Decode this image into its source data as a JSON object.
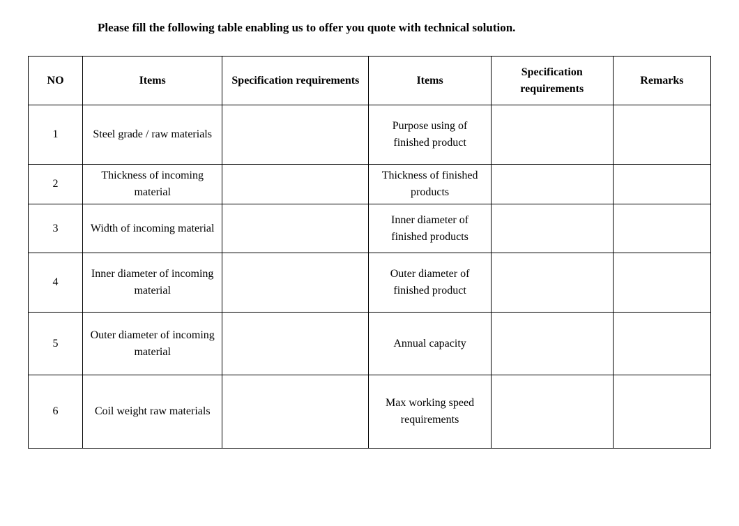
{
  "title": "Please fill the following table enabling us to offer you quote with technical solution.",
  "table": {
    "columns": [
      "NO",
      "Items",
      "Specification requirements",
      "Items",
      "Specification requirements",
      "Remarks"
    ],
    "rows": [
      {
        "no": "1",
        "items1": "Steel grade / raw materials",
        "spec1": "",
        "items2": "Purpose using of finished product",
        "spec2": "",
        "remarks": ""
      },
      {
        "no": "2",
        "items1": "Thickness of incoming material",
        "spec1": "",
        "items2": "Thickness of finished products",
        "spec2": "",
        "remarks": ""
      },
      {
        "no": "3",
        "items1": "Width of incoming material",
        "spec1": "",
        "items2": "Inner diameter of finished products",
        "spec2": "",
        "remarks": ""
      },
      {
        "no": "4",
        "items1": "Inner diameter of incoming material",
        "spec1": "",
        "items2": "Outer diameter of finished product",
        "spec2": "",
        "remarks": ""
      },
      {
        "no": "5",
        "items1": "Outer diameter of incoming material",
        "spec1": "",
        "items2": "Annual capacity",
        "spec2": "",
        "remarks": ""
      },
      {
        "no": "6",
        "items1": "Coil weight raw materials",
        "spec1": "",
        "items2": "Max working speed requirements",
        "spec2": "",
        "remarks": ""
      }
    ],
    "border_color": "#000000",
    "background_color": "#ffffff",
    "text_color": "#000000",
    "header_fontsize": 16,
    "cell_fontsize": 16,
    "font_family": "Times New Roman"
  }
}
